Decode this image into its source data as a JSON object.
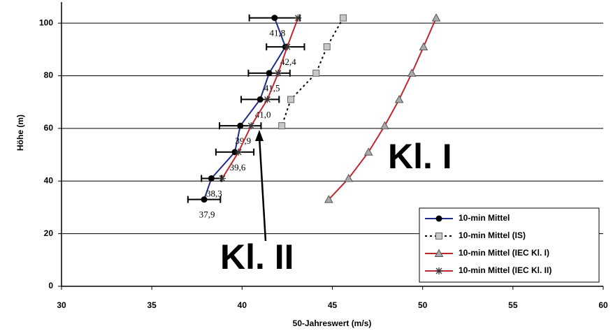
{
  "chart_data": {
    "type": "profile",
    "x_label": "50-Jahreswert (m/s)",
    "y_label": "Höhe (m)",
    "xlim": [
      30,
      60
    ],
    "xticks": [
      30,
      35,
      40,
      45,
      50,
      55,
      60
    ],
    "ylim": [
      0,
      108
    ],
    "yticks": [
      0,
      20,
      40,
      60,
      80,
      100
    ],
    "grid": true,
    "legend": "lower right",
    "series": [
      {
        "name": "10-min Mittel",
        "color": "#1f2a8c",
        "marker": "circle",
        "dash": "solid",
        "values": [
          41.8,
          42.4,
          41.5,
          41.0,
          39.9,
          39.6,
          38.3,
          37.9
        ],
        "value_labels": [
          "41,8",
          "42,4",
          "41,5",
          "41,0",
          "39,9",
          "39,6",
          "38,3",
          "37,9"
        ],
        "heights": [
          102,
          91,
          81,
          71,
          61,
          51,
          41,
          33
        ],
        "errors": [
          1.4,
          1.05,
          1.15,
          1.05,
          1.15,
          1.05,
          0.55,
          0.9
        ]
      },
      {
        "name": "10-min Mittel (IS)",
        "color": "#000000",
        "marker": "square",
        "dash": "dotted",
        "values": [
          45.6,
          44.7,
          44.1,
          42.7,
          42.2
        ],
        "heights": [
          102,
          91,
          81,
          71,
          61
        ]
      },
      {
        "name": "10-min Mittel (IEC Kl. I)",
        "color": "#c0272d",
        "marker": "triangle",
        "dash": "solid",
        "values": [
          50.75,
          50.05,
          49.4,
          48.7,
          47.9,
          47.0,
          45.9,
          44.8
        ],
        "heights": [
          102,
          91,
          81,
          71,
          61,
          51,
          41,
          33
        ]
      },
      {
        "name": "10-min Mittel (IEC Kl. II)",
        "color": "#c0272d",
        "marker": "asterisk",
        "dash": "solid",
        "values": [
          43.1,
          42.5,
          42.0,
          41.4,
          40.5,
          39.8,
          38.9
        ],
        "heights": [
          102,
          91,
          81,
          71,
          61,
          51,
          41
        ]
      }
    ],
    "annotations": [
      {
        "text": "Kl. I"
      },
      {
        "text": "Kl. II"
      }
    ]
  }
}
